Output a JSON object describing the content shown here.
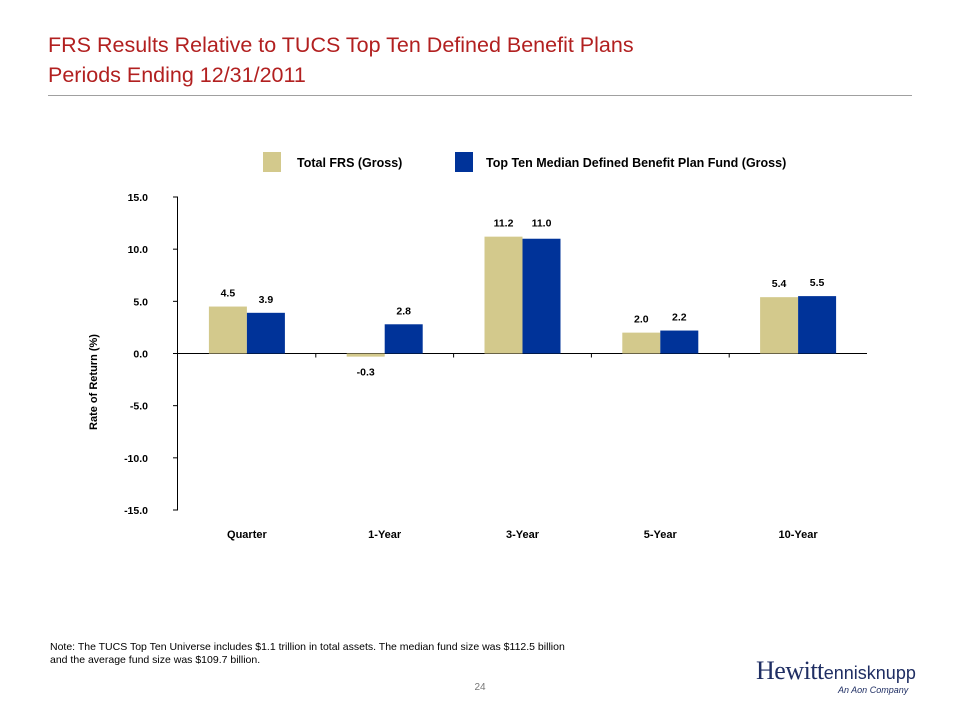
{
  "page": {
    "title_line1": "FRS Results Relative to TUCS Top Ten Defined Benefit Plans",
    "title_line2": "Periods Ending 12/31/2011",
    "note_line1": "Note: The TUCS Top Ten Universe includes $1.1 trillion in total assets. The median fund size was $112.5 billion",
    "note_line2": "and the average fund size was $109.7 billion.",
    "page_number": "24",
    "logo_primary": "Hewitt",
    "logo_secondary": "ennisknupp",
    "logo_tagline": "An Aon Company"
  },
  "colors": {
    "title": "#b22020",
    "series_frs": "#d3c98c",
    "series_median": "#003399"
  },
  "chart_data": {
    "type": "bar",
    "title": "",
    "xlabel": "",
    "ylabel": "Rate of Return (%)",
    "ylim": [
      -15,
      15
    ],
    "yticks": [
      15,
      10,
      5,
      0,
      -5,
      -10,
      -15
    ],
    "ytick_labels": [
      "15.0",
      "10.0",
      "5.0",
      "0.0",
      "-5.0",
      "-10.0",
      "-15.0"
    ],
    "categories": [
      "Quarter",
      "1-Year",
      "3-Year",
      "5-Year",
      "10-Year"
    ],
    "series": [
      {
        "name": "Total FRS (Gross)",
        "color": "#d3c98c",
        "values": [
          4.5,
          -0.3,
          11.2,
          2.0,
          5.4
        ],
        "labels": [
          "4.5",
          "-0.3",
          "11.2",
          "2.0",
          "5.4"
        ]
      },
      {
        "name": "Top Ten Median Defined Benefit Plan Fund (Gross)",
        "color": "#003399",
        "values": [
          3.9,
          2.8,
          11.0,
          2.2,
          5.5
        ],
        "labels": [
          "3.9",
          "2.8",
          "11.0",
          "2.2",
          "5.5"
        ]
      }
    ],
    "legend": "top",
    "grid": false
  }
}
